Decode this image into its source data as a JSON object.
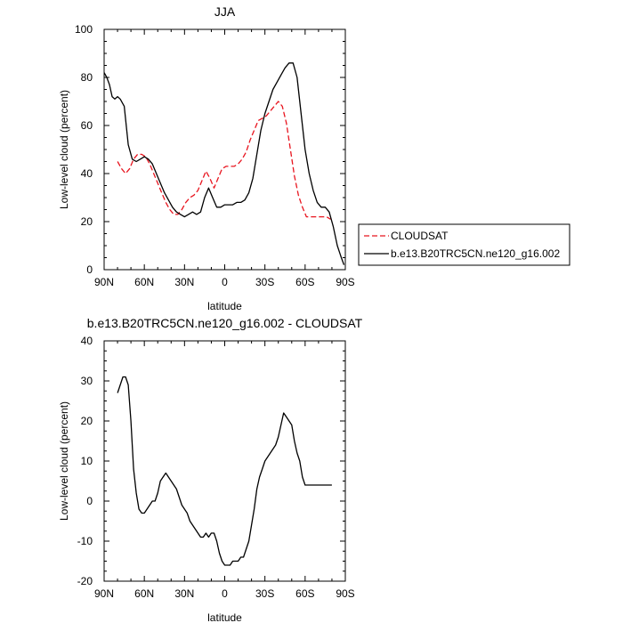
{
  "chart_data": [
    {
      "type": "line",
      "title": "JJA",
      "xlabel": "latitude",
      "ylabel": "Low-level cloud (percent)",
      "xlim": [
        90,
        -90
      ],
      "ylim": [
        0,
        100
      ],
      "x_ticks": [
        90,
        60,
        30,
        0,
        -30,
        -60,
        -90
      ],
      "x_tick_labels": [
        "90N",
        "60N",
        "30N",
        "0",
        "30S",
        "60S",
        "90S"
      ],
      "y_ticks": [
        0,
        20,
        40,
        60,
        80,
        100
      ],
      "y_tick_labels": [
        "0",
        "20",
        "40",
        "60",
        "80",
        "100"
      ],
      "legend_position": "right-bottom-outside",
      "series": [
        {
          "name": "CLOUDSAT",
          "color": "#e8141e",
          "dash": true,
          "x": [
            80,
            77,
            74,
            71,
            68,
            65,
            62,
            59,
            56,
            53,
            50,
            47,
            44,
            41,
            38,
            35,
            32,
            29,
            26,
            23,
            20,
            17,
            14,
            11,
            8,
            5,
            2,
            -1,
            -4,
            -7,
            -10,
            -13,
            -16,
            -19,
            -22,
            -25,
            -28,
            -31,
            -34,
            -37,
            -40,
            -43,
            -46,
            -49,
            -52,
            -55,
            -58,
            -61,
            -64,
            -67,
            -70,
            -73,
            -76,
            -79
          ],
          "y": [
            45,
            42,
            40,
            42,
            46,
            48,
            48,
            47,
            44,
            40,
            36,
            32,
            28,
            25,
            23,
            23,
            25,
            28,
            30,
            31,
            33,
            37,
            41,
            38,
            34,
            38,
            42,
            43,
            43,
            43,
            44,
            46,
            49,
            54,
            58,
            62,
            63,
            64,
            66,
            68,
            70,
            68,
            61,
            50,
            39,
            31,
            26,
            22,
            22,
            22,
            22,
            22,
            22,
            21
          ]
        },
        {
          "name": "b.e13.B20TRC5CN.ne120_g16.002",
          "color": "#000000",
          "dash": false,
          "x": [
            90,
            88,
            86,
            84,
            82,
            80,
            78,
            75,
            72,
            69,
            66,
            63,
            60,
            57,
            54,
            51,
            48,
            45,
            42,
            39,
            36,
            33,
            30,
            27,
            24,
            21,
            18,
            15,
            12,
            9,
            6,
            3,
            0,
            -3,
            -6,
            -9,
            -12,
            -15,
            -18,
            -21,
            -24,
            -27,
            -30,
            -33,
            -36,
            -39,
            -42,
            -45,
            -48,
            -51,
            -54,
            -57,
            -60,
            -63,
            -66,
            -69,
            -72,
            -75,
            -78,
            -81,
            -84,
            -87,
            -89
          ],
          "y": [
            82,
            80,
            77,
            72,
            71,
            72,
            71,
            68,
            52,
            46,
            45,
            46,
            47,
            46,
            44,
            40,
            36,
            32,
            29,
            26,
            24,
            23,
            22,
            23,
            24,
            23,
            24,
            30,
            34,
            30,
            26,
            26,
            27,
            27,
            27,
            28,
            28,
            29,
            32,
            38,
            48,
            58,
            65,
            70,
            75,
            78,
            81,
            84,
            86,
            86,
            80,
            65,
            50,
            40,
            33,
            28,
            26,
            26,
            24,
            18,
            10,
            5,
            2
          ]
        }
      ]
    },
    {
      "type": "line",
      "title": "b.e13.B20TRC5CN.ne120_g16.002 - CLOUDSAT",
      "xlabel": "latitude",
      "ylabel": "Low-level cloud (percent)",
      "xlim": [
        90,
        -90
      ],
      "ylim": [
        -20,
        40
      ],
      "x_ticks": [
        90,
        60,
        30,
        0,
        -30,
        -60,
        -90
      ],
      "x_tick_labels": [
        "90N",
        "60N",
        "30N",
        "0",
        "30S",
        "60S",
        "90S"
      ],
      "y_ticks": [
        -20,
        -10,
        0,
        10,
        20,
        30,
        40
      ],
      "y_tick_labels": [
        "-20",
        "-10",
        "0",
        "10",
        "20",
        "30",
        "40"
      ],
      "series": [
        {
          "color": "#000000",
          "dash": false,
          "x": [
            80,
            78,
            76,
            74,
            72,
            70,
            68,
            66,
            64,
            62,
            60,
            58,
            56,
            54,
            52,
            50,
            48,
            46,
            44,
            42,
            40,
            38,
            36,
            34,
            32,
            30,
            28,
            26,
            24,
            22,
            20,
            18,
            16,
            14,
            12,
            10,
            8,
            6,
            4,
            2,
            0,
            -2,
            -4,
            -6,
            -8,
            -10,
            -12,
            -14,
            -16,
            -18,
            -20,
            -22,
            -24,
            -26,
            -28,
            -30,
            -32,
            -34,
            -36,
            -38,
            -40,
            -42,
            -44,
            -46,
            -48,
            -50,
            -52,
            -54,
            -56,
            -58,
            -60,
            -62,
            -64,
            -66,
            -68,
            -70,
            -72,
            -74,
            -76,
            -78,
            -80
          ],
          "y": [
            27,
            29,
            31,
            31,
            29,
            20,
            8,
            2,
            -2,
            -3,
            -3,
            -2,
            -1,
            0,
            0,
            2,
            5,
            6,
            7,
            6,
            5,
            4,
            3,
            1,
            -1,
            -2,
            -3,
            -5,
            -6,
            -7,
            -8,
            -9,
            -9,
            -8,
            -9,
            -8,
            -8,
            -10,
            -13,
            -15,
            -16,
            -16,
            -16,
            -15,
            -15,
            -15,
            -14,
            -14,
            -12,
            -10,
            -6,
            -2,
            3,
            6,
            8,
            10,
            11,
            12,
            13,
            14,
            16,
            19,
            22,
            21,
            20,
            19,
            15,
            12,
            10,
            6,
            4,
            4,
            4,
            4,
            4,
            4,
            4,
            4,
            4,
            4,
            4
          ]
        }
      ]
    }
  ]
}
